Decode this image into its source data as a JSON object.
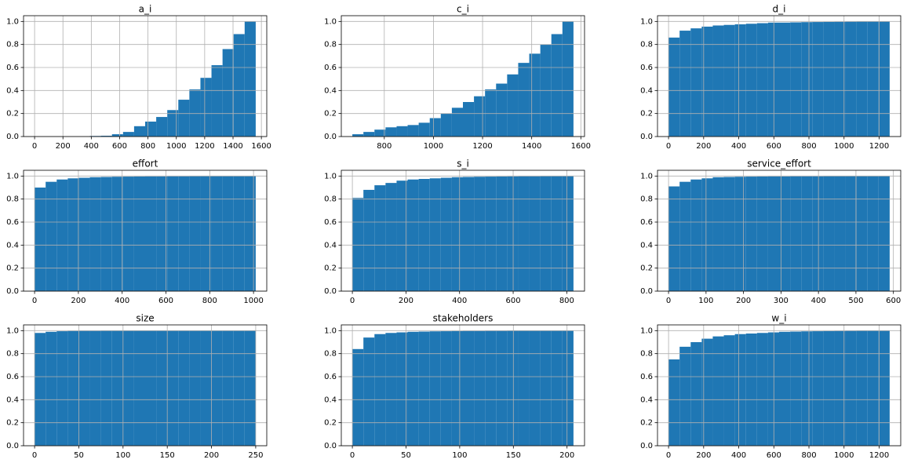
{
  "chart_data": [
    {
      "type": "histogram",
      "title": "a_i",
      "color": "#1f77b4",
      "grid": true,
      "bins": [
        0,
        78,
        156,
        234,
        312,
        390,
        468,
        546,
        624,
        702,
        780,
        858,
        936,
        1014,
        1092,
        1170,
        1248,
        1326,
        1404,
        1482,
        1560
      ],
      "values": [
        0,
        0,
        0,
        0,
        0,
        0.005,
        0.007,
        0.02,
        0.04,
        0.09,
        0.13,
        0.17,
        0.23,
        0.32,
        0.41,
        0.51,
        0.62,
        0.76,
        0.89,
        1.0
      ],
      "xlim": [
        -78,
        1638
      ],
      "xticks": [
        0,
        200,
        400,
        600,
        800,
        1000,
        1200,
        1400,
        1600
      ],
      "ylim": [
        0,
        1.05
      ],
      "yticks": [
        {
          "value": 0,
          "label": "0.0"
        },
        0.2,
        0.4,
        0.6,
        0.8,
        {
          "value": 1,
          "label": "1.0"
        }
      ]
    },
    {
      "type": "histogram",
      "title": "c_i",
      "color": "#1f77b4",
      "grid": true,
      "bins": [
        670,
        715,
        760,
        805,
        850,
        895,
        940,
        985,
        1030,
        1075,
        1120,
        1165,
        1210,
        1255,
        1300,
        1345,
        1390,
        1435,
        1480,
        1525,
        1570
      ],
      "values": [
        0.02,
        0.04,
        0.06,
        0.08,
        0.09,
        0.1,
        0.12,
        0.16,
        0.2,
        0.25,
        0.3,
        0.35,
        0.41,
        0.46,
        0.54,
        0.64,
        0.72,
        0.8,
        0.89,
        1.0
      ],
      "xlim": [
        625,
        1615
      ],
      "xticks": [
        800,
        1000,
        1200,
        1400,
        1600
      ],
      "ylim": [
        0,
        1.05
      ],
      "yticks": [
        {
          "value": 0,
          "label": "0.0"
        },
        0.2,
        0.4,
        0.6,
        0.8,
        {
          "value": 1,
          "label": "1.0"
        }
      ]
    },
    {
      "type": "histogram",
      "title": "d_i",
      "color": "#1f77b4",
      "grid": true,
      "bins": [
        0,
        63,
        126,
        189,
        252,
        315,
        378,
        441,
        504,
        567,
        630,
        693,
        756,
        819,
        882,
        945,
        1008,
        1071,
        1134,
        1197,
        1260
      ],
      "values": [
        0.86,
        0.92,
        0.94,
        0.955,
        0.965,
        0.97,
        0.975,
        0.98,
        0.985,
        0.99,
        0.99,
        0.992,
        0.994,
        0.995,
        0.996,
        0.997,
        0.998,
        0.999,
        0.999,
        1.0
      ],
      "xlim": [
        -63,
        1323
      ],
      "xticks": [
        0,
        200,
        400,
        600,
        800,
        1000,
        1200
      ],
      "ylim": [
        0,
        1.05
      ],
      "yticks": [
        {
          "value": 0,
          "label": "0.0"
        },
        0.2,
        0.4,
        0.6,
        0.8,
        {
          "value": 1,
          "label": "1.0"
        }
      ]
    },
    {
      "type": "histogram",
      "title": "effort",
      "color": "#1f77b4",
      "grid": true,
      "bins": [
        0,
        50.5,
        101,
        151.5,
        202,
        252.5,
        303,
        353.5,
        404,
        454.5,
        505,
        555.5,
        606,
        656.5,
        707,
        757.5,
        808,
        858.5,
        909,
        959.5,
        1010
      ],
      "values": [
        0.9,
        0.95,
        0.97,
        0.98,
        0.985,
        0.99,
        0.992,
        0.994,
        0.995,
        0.996,
        0.997,
        0.997,
        0.998,
        0.998,
        0.999,
        0.999,
        0.999,
        0.999,
        0.999,
        1.0
      ],
      "xlim": [
        -50.5,
        1060.5
      ],
      "xticks": [
        0,
        200,
        400,
        600,
        800,
        1000
      ],
      "ylim": [
        0,
        1.05
      ],
      "yticks": [
        {
          "value": 0,
          "label": "0.0"
        },
        0.2,
        0.4,
        0.6,
        0.8,
        {
          "value": 1,
          "label": "1.0"
        }
      ]
    },
    {
      "type": "histogram",
      "title": "s_i",
      "color": "#1f77b4",
      "grid": true,
      "bins": [
        0,
        41.25,
        82.5,
        123.75,
        165,
        206.25,
        247.5,
        288.75,
        330,
        371.25,
        412.5,
        453.75,
        495,
        536.25,
        577.5,
        618.75,
        660,
        701.25,
        742.5,
        783.75,
        825
      ],
      "values": [
        0.81,
        0.88,
        0.92,
        0.94,
        0.96,
        0.97,
        0.975,
        0.98,
        0.985,
        0.99,
        0.992,
        0.994,
        0.995,
        0.996,
        0.997,
        0.998,
        0.998,
        0.999,
        0.999,
        1.0
      ],
      "xlim": [
        -41.25,
        866.25
      ],
      "xticks": [
        0,
        200,
        400,
        600,
        800
      ],
      "ylim": [
        0,
        1.05
      ],
      "yticks": [
        {
          "value": 0,
          "label": "0.0"
        },
        0.2,
        0.4,
        0.6,
        0.8,
        {
          "value": 1,
          "label": "1.0"
        }
      ]
    },
    {
      "type": "histogram",
      "title": "service_effort",
      "color": "#1f77b4",
      "grid": true,
      "bins": [
        0,
        29.5,
        59,
        88.5,
        118,
        147.5,
        177,
        206.5,
        236,
        265.5,
        295,
        324.5,
        354,
        383.5,
        413,
        442.5,
        472,
        501.5,
        531,
        560.5,
        590
      ],
      "values": [
        0.91,
        0.95,
        0.97,
        0.98,
        0.99,
        0.992,
        0.994,
        0.995,
        0.996,
        0.997,
        0.997,
        0.998,
        0.998,
        0.998,
        0.999,
        0.999,
        0.999,
        0.999,
        0.999,
        1.0
      ],
      "xlim": [
        -29.5,
        619.5
      ],
      "xticks": [
        0,
        100,
        200,
        300,
        400,
        500,
        600
      ],
      "ylim": [
        0,
        1.05
      ],
      "yticks": [
        {
          "value": 0,
          "label": "0.0"
        },
        0.2,
        0.4,
        0.6,
        0.8,
        {
          "value": 1,
          "label": "1.0"
        }
      ]
    },
    {
      "type": "histogram",
      "title": "size",
      "color": "#1f77b4",
      "grid": true,
      "bins": [
        0,
        12.5,
        25,
        37.5,
        50,
        62.5,
        75,
        87.5,
        100,
        112.5,
        125,
        137.5,
        150,
        162.5,
        175,
        187.5,
        200,
        212.5,
        225,
        237.5,
        250
      ],
      "values": [
        0.98,
        0.99,
        0.995,
        0.997,
        0.998,
        0.998,
        0.999,
        0.999,
        0.999,
        0.999,
        0.999,
        0.999,
        0.999,
        0.999,
        0.999,
        0.999,
        0.999,
        0.999,
        0.999,
        1.0
      ],
      "xlim": [
        -12.5,
        262.5
      ],
      "xticks": [
        0,
        50,
        100,
        150,
        200,
        250
      ],
      "ylim": [
        0,
        1.05
      ],
      "yticks": [
        {
          "value": 0,
          "label": "0.0"
        },
        0.2,
        0.4,
        0.6,
        0.8,
        {
          "value": 1,
          "label": "1.0"
        }
      ]
    },
    {
      "type": "histogram",
      "title": "stakeholders",
      "color": "#1f77b4",
      "grid": true,
      "bins": [
        0,
        10.3,
        20.6,
        30.9,
        41.2,
        51.5,
        61.8,
        72.1,
        82.4,
        92.7,
        103,
        113.3,
        123.6,
        133.9,
        144.2,
        154.5,
        164.8,
        175.1,
        185.4,
        195.7,
        206
      ],
      "values": [
        0.84,
        0.94,
        0.97,
        0.98,
        0.985,
        0.99,
        0.992,
        0.994,
        0.995,
        0.996,
        0.997,
        0.997,
        0.998,
        0.998,
        0.999,
        0.999,
        0.999,
        0.999,
        0.999,
        1.0
      ],
      "xlim": [
        -10.3,
        216.3
      ],
      "xticks": [
        0,
        50,
        100,
        150,
        200
      ],
      "ylim": [
        0,
        1.05
      ],
      "yticks": [
        {
          "value": 0,
          "label": "0.0"
        },
        0.2,
        0.4,
        0.6,
        0.8,
        {
          "value": 1,
          "label": "1.0"
        }
      ]
    },
    {
      "type": "histogram",
      "title": "w_i",
      "color": "#1f77b4",
      "grid": true,
      "bins": [
        0,
        63,
        126,
        189,
        252,
        315,
        378,
        441,
        504,
        567,
        630,
        693,
        756,
        819,
        882,
        945,
        1008,
        1071,
        1134,
        1197,
        1260
      ],
      "values": [
        0.75,
        0.86,
        0.9,
        0.93,
        0.95,
        0.96,
        0.97,
        0.975,
        0.98,
        0.985,
        0.99,
        0.992,
        0.994,
        0.995,
        0.996,
        0.997,
        0.998,
        0.999,
        0.999,
        1.0
      ],
      "xlim": [
        -63,
        1323
      ],
      "xticks": [
        0,
        200,
        400,
        600,
        800,
        1000,
        1200
      ],
      "ylim": [
        0,
        1.05
      ],
      "yticks": [
        {
          "value": 0,
          "label": "0.0"
        },
        0.2,
        0.4,
        0.6,
        0.8,
        {
          "value": 1,
          "label": "1.0"
        }
      ]
    }
  ]
}
